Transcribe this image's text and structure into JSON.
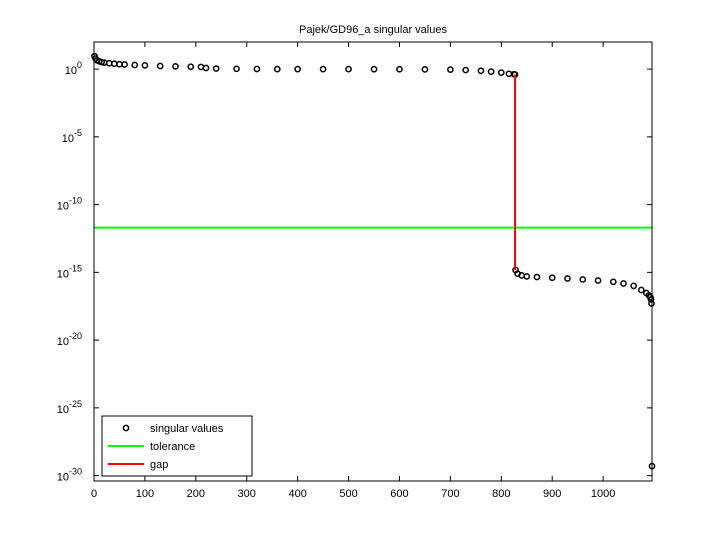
{
  "chart_data": {
    "type": "scatter",
    "title": "Pajek/GD96_a singular values",
    "log_y": true,
    "xlim": [
      0,
      1096
    ],
    "ylim": [
      4e-31,
      100
    ],
    "xticks": [
      0,
      100,
      200,
      300,
      400,
      500,
      600,
      700,
      800,
      900,
      1000
    ],
    "yticks": [
      {
        "value": 1,
        "label": "10^0"
      },
      {
        "value": 1e-05,
        "label": "10^-5"
      },
      {
        "value": 1e-10,
        "label": "10^-10"
      },
      {
        "value": 1e-15,
        "label": "10^-15"
      },
      {
        "value": 1e-20,
        "label": "10^-20"
      },
      {
        "value": 1e-25,
        "label": "10^-25"
      },
      {
        "value": 1e-30,
        "label": "10^-30"
      }
    ],
    "legend": "lower left",
    "series": [
      {
        "name": "singular values",
        "color": "#000000",
        "type": "scatter",
        "x": [
          1,
          3,
          6,
          10,
          15,
          20,
          30,
          40,
          50,
          60,
          80,
          100,
          130,
          160,
          190,
          210,
          220,
          240,
          280,
          320,
          360,
          400,
          450,
          500,
          550,
          600,
          650,
          700,
          730,
          760,
          780,
          800,
          815,
          825,
          827,
          828,
          832,
          840,
          850,
          870,
          900,
          930,
          960,
          990,
          1020,
          1040,
          1060,
          1075,
          1085,
          1090,
          1093,
          1094,
          1095,
          1096
        ],
        "values": [
          9,
          6,
          4.5,
          3.8,
          3.3,
          3,
          2.7,
          2.5,
          2.3,
          2.2,
          2,
          1.9,
          1.7,
          1.6,
          1.5,
          1.45,
          1.2,
          1.1,
          1.05,
          1.02,
          1,
          1,
          1,
          1,
          0.98,
          0.97,
          0.95,
          0.92,
          0.85,
          0.75,
          0.65,
          0.55,
          0.45,
          0.42,
          0.4,
          1.5e-15,
          8e-16,
          6e-16,
          5e-16,
          4.5e-16,
          4e-16,
          3.5e-16,
          3e-16,
          2.5e-16,
          2e-16,
          1.5e-16,
          1e-16,
          5e-17,
          3e-17,
          2e-17,
          1.5e-17,
          1e-17,
          5e-18,
          5e-30
        ]
      },
      {
        "name": "tolerance",
        "color": "#00ff00",
        "type": "line",
        "x": [
          0,
          1096
        ],
        "values": [
          2e-12,
          2e-12
        ]
      },
      {
        "name": "gap",
        "color": "#ff0000",
        "type": "line",
        "x": [
          827,
          827
        ],
        "values": [
          0.4,
          1.5e-15
        ]
      }
    ]
  }
}
